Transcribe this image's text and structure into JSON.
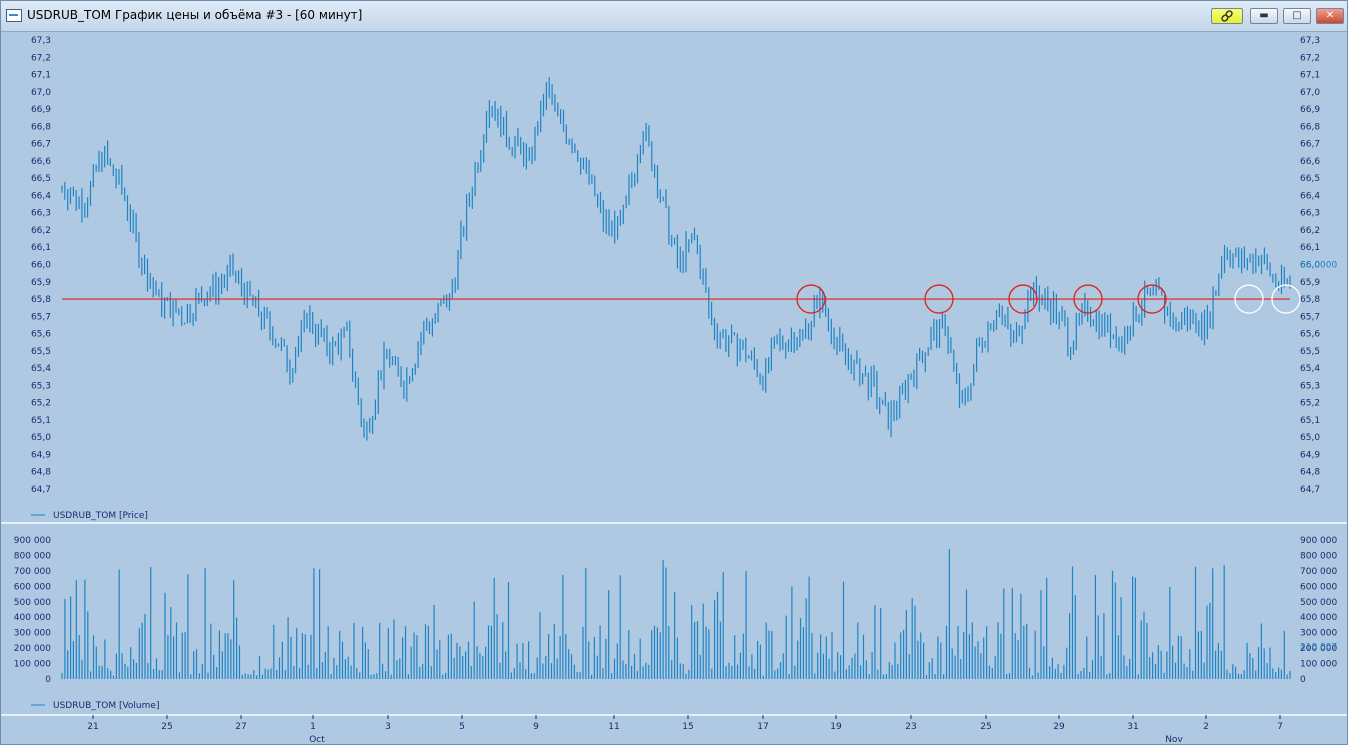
{
  "window": {
    "title": "USDRUB_TOM График цены и объёма #3 - [60 минут]",
    "buttons": {
      "link": "link-icon",
      "minimize": "minimize-icon",
      "maximize": "maximize-icon",
      "close": "close-icon"
    }
  },
  "colors": {
    "background": "#afc9e2",
    "bars": "#1f84c4",
    "support_line": "#e0201a",
    "circle_red": "#e0201a",
    "circle_white": "#ffffff",
    "axis_text": "#1a2a6b",
    "current_value_text": "#1f84c4"
  },
  "chart_data": [
    {
      "type": "bar",
      "subtype": "ohlc-hl-bars",
      "series": [
        {
          "name": "USDRUB_TOM [Price]"
        }
      ],
      "ylim": [
        64.7,
        67.3
      ],
      "y_ticks": [
        "67,3",
        "67,2",
        "67,1",
        "67,0",
        "66,9",
        "66,8",
        "66,7",
        "66,6",
        "66,5",
        "66,4",
        "66,3",
        "66,2",
        "66,1",
        "66,0",
        "65,9",
        "65,8",
        "65,7",
        "65,6",
        "65,5",
        "65,4",
        "65,3",
        "65,2",
        "65,1",
        "65,0",
        "64,9",
        "64,8",
        "64,7"
      ],
      "current_value_label": "66.0000",
      "current_value": 66.0,
      "support_level": 65.8,
      "anchors": [
        {
          "i": 0,
          "v": 66.45
        },
        {
          "i": 8,
          "v": 66.35
        },
        {
          "i": 14,
          "v": 66.65
        },
        {
          "i": 22,
          "v": 66.4
        },
        {
          "i": 28,
          "v": 66.0
        },
        {
          "i": 34,
          "v": 65.8
        },
        {
          "i": 42,
          "v": 65.7
        },
        {
          "i": 52,
          "v": 65.85
        },
        {
          "i": 60,
          "v": 65.95
        },
        {
          "i": 68,
          "v": 65.75
        },
        {
          "i": 76,
          "v": 65.55
        },
        {
          "i": 80,
          "v": 65.4
        },
        {
          "i": 86,
          "v": 65.7
        },
        {
          "i": 94,
          "v": 65.5
        },
        {
          "i": 100,
          "v": 65.6
        },
        {
          "i": 106,
          "v": 65.0
        },
        {
          "i": 114,
          "v": 65.5
        },
        {
          "i": 120,
          "v": 65.3
        },
        {
          "i": 128,
          "v": 65.65
        },
        {
          "i": 136,
          "v": 65.8
        },
        {
          "i": 142,
          "v": 66.3
        },
        {
          "i": 150,
          "v": 66.95
        },
        {
          "i": 156,
          "v": 66.75
        },
        {
          "i": 164,
          "v": 66.6
        },
        {
          "i": 170,
          "v": 67.0
        },
        {
          "i": 176,
          "v": 66.8
        },
        {
          "i": 184,
          "v": 66.55
        },
        {
          "i": 190,
          "v": 66.25
        },
        {
          "i": 196,
          "v": 66.2
        },
        {
          "i": 204,
          "v": 66.8
        },
        {
          "i": 210,
          "v": 66.4
        },
        {
          "i": 216,
          "v": 66.0
        },
        {
          "i": 222,
          "v": 66.15
        },
        {
          "i": 228,
          "v": 65.65
        },
        {
          "i": 234,
          "v": 65.55
        },
        {
          "i": 240,
          "v": 65.5
        },
        {
          "i": 246,
          "v": 65.35
        },
        {
          "i": 252,
          "v": 65.55
        },
        {
          "i": 260,
          "v": 65.6
        },
        {
          "i": 266,
          "v": 65.8
        },
        {
          "i": 272,
          "v": 65.55
        },
        {
          "i": 278,
          "v": 65.4
        },
        {
          "i": 284,
          "v": 65.3
        },
        {
          "i": 290,
          "v": 65.1
        },
        {
          "i": 296,
          "v": 65.3
        },
        {
          "i": 304,
          "v": 65.55
        },
        {
          "i": 310,
          "v": 65.65
        },
        {
          "i": 316,
          "v": 65.15
        },
        {
          "i": 322,
          "v": 65.55
        },
        {
          "i": 328,
          "v": 65.75
        },
        {
          "i": 334,
          "v": 65.55
        },
        {
          "i": 340,
          "v": 65.85
        },
        {
          "i": 348,
          "v": 65.75
        },
        {
          "i": 354,
          "v": 65.55
        },
        {
          "i": 360,
          "v": 65.75
        },
        {
          "i": 366,
          "v": 65.65
        },
        {
          "i": 372,
          "v": 65.55
        },
        {
          "i": 378,
          "v": 65.75
        },
        {
          "i": 384,
          "v": 65.85
        },
        {
          "i": 390,
          "v": 65.65
        },
        {
          "i": 396,
          "v": 65.7
        },
        {
          "i": 402,
          "v": 65.65
        },
        {
          "i": 408,
          "v": 66.1
        },
        {
          "i": 414,
          "v": 66.0
        },
        {
          "i": 420,
          "v": 66.05
        },
        {
          "i": 426,
          "v": 65.9
        },
        {
          "i": 431,
          "v": 65.9
        }
      ]
    },
    {
      "type": "bar",
      "series": [
        {
          "name": "USDRUB_TOM [Volume]"
        }
      ],
      "ylim": [
        0,
        900000
      ],
      "y_ticks": [
        "900 000",
        "800 000",
        "700 000",
        "600 000",
        "500 000",
        "400 000",
        "300 000",
        "200 000",
        "100 000",
        "0"
      ],
      "current_value_label": "210 807",
      "current_value": 210807
    }
  ],
  "x_axis": {
    "ticks": [
      "21",
      "25",
      "27",
      "1",
      "3",
      "5",
      "9",
      "11",
      "15",
      "17",
      "19",
      "23",
      "25",
      "29",
      "31",
      "2",
      "7"
    ],
    "months": [
      "Oct",
      "Nov"
    ]
  },
  "annotations": {
    "circles_red": [
      65.8,
      65.8,
      65.8,
      65.8,
      65.8
    ],
    "circles_white": [
      65.8,
      65.8
    ]
  }
}
